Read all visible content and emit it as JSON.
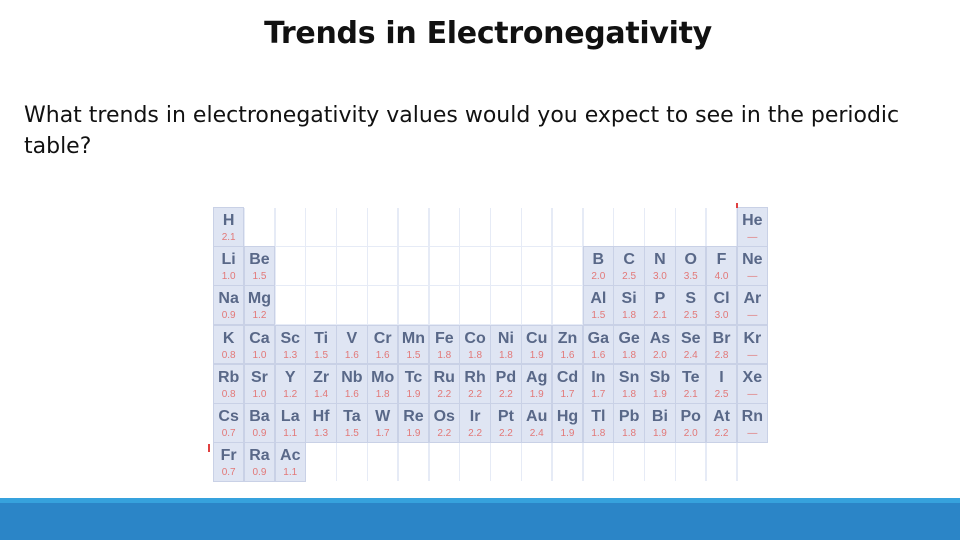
{
  "slide": {
    "title": "Trends in Electronegativity",
    "body": "What trends in electronegativity values would you expect to see in the periodic table?"
  },
  "periodic_table": {
    "colors": {
      "cell_background": "#dfe5f3",
      "symbol_color": "#596888",
      "value_color": "#e27878"
    },
    "rows": [
      [
        {
          "symbol": "H",
          "value": "2.1"
        },
        null,
        null,
        null,
        null,
        null,
        null,
        null,
        null,
        null,
        null,
        null,
        null,
        {
          "symbol": "He",
          "value": "—"
        }
      ],
      [
        {
          "symbol": "Li",
          "value": "1.0"
        },
        {
          "symbol": "Be",
          "value": "1.5"
        },
        null,
        null,
        null,
        null,
        null,
        null,
        {
          "symbol": "B",
          "value": "2.0"
        },
        {
          "symbol": "C",
          "value": "2.5"
        },
        {
          "symbol": "N",
          "value": "3.0"
        },
        {
          "symbol": "O",
          "value": "3.5"
        },
        {
          "symbol": "F",
          "value": "4.0"
        },
        {
          "symbol": "Ne",
          "value": "—"
        }
      ],
      [
        {
          "symbol": "Na",
          "value": "0.9"
        },
        {
          "symbol": "Mg",
          "value": "1.2"
        },
        null,
        null,
        null,
        null,
        null,
        null,
        {
          "symbol": "Al",
          "value": "1.5"
        },
        {
          "symbol": "Si",
          "value": "1.8"
        },
        {
          "symbol": "P",
          "value": "2.1"
        },
        {
          "symbol": "S",
          "value": "2.5"
        },
        {
          "symbol": "Cl",
          "value": "3.0"
        },
        {
          "symbol": "Ar",
          "value": "—"
        }
      ],
      [
        {
          "symbol": "K",
          "value": "0.8"
        },
        {
          "symbol": "Ca",
          "value": "1.0"
        },
        {
          "symbol": "Sc",
          "value": "1.3"
        },
        {
          "symbol": "Ti",
          "value": "1.5"
        },
        {
          "symbol": "V",
          "value": "1.6"
        },
        {
          "symbol": "Cr",
          "value": "1.6"
        },
        {
          "symbol": "Mn",
          "value": "1.5"
        },
        {
          "symbol": "Fe",
          "value": "1.8"
        },
        {
          "symbol": "Co",
          "value": "1.8"
        },
        {
          "symbol": "Ni",
          "value": "1.8"
        },
        {
          "symbol": "Cu",
          "value": "1.9"
        },
        {
          "symbol": "Zn",
          "value": "1.6"
        },
        {
          "symbol": "Ga",
          "value": "1.6"
        },
        {
          "symbol": "Ge",
          "value": "1.8"
        },
        {
          "symbol": "As",
          "value": "2.0"
        },
        {
          "symbol": "Se",
          "value": "2.4"
        },
        {
          "symbol": "Br",
          "value": "2.8"
        },
        {
          "symbol": "Kr",
          "value": "—"
        }
      ],
      [
        {
          "symbol": "Rb",
          "value": "0.8"
        },
        {
          "symbol": "Sr",
          "value": "1.0"
        },
        {
          "symbol": "Y",
          "value": "1.2"
        },
        {
          "symbol": "Zr",
          "value": "1.4"
        },
        {
          "symbol": "Nb",
          "value": "1.6"
        },
        {
          "symbol": "Mo",
          "value": "1.8"
        },
        {
          "symbol": "Tc",
          "value": "1.9"
        },
        {
          "symbol": "Ru",
          "value": "2.2"
        },
        {
          "symbol": "Rh",
          "value": "2.2"
        },
        {
          "symbol": "Pd",
          "value": "2.2"
        },
        {
          "symbol": "Ag",
          "value": "1.9"
        },
        {
          "symbol": "Cd",
          "value": "1.7"
        },
        {
          "symbol": "In",
          "value": "1.7"
        },
        {
          "symbol": "Sn",
          "value": "1.8"
        },
        {
          "symbol": "Sb",
          "value": "1.9"
        },
        {
          "symbol": "Te",
          "value": "2.1"
        },
        {
          "symbol": "I",
          "value": "2.5"
        },
        {
          "symbol": "Xe",
          "value": "—"
        }
      ],
      [
        {
          "symbol": "Cs",
          "value": "0.7"
        },
        {
          "symbol": "Ba",
          "value": "0.9"
        },
        {
          "symbol": "La",
          "value": "1.1"
        },
        {
          "symbol": "Hf",
          "value": "1.3"
        },
        {
          "symbol": "Ta",
          "value": "1.5"
        },
        {
          "symbol": "W",
          "value": "1.7"
        },
        {
          "symbol": "Re",
          "value": "1.9"
        },
        {
          "symbol": "Os",
          "value": "2.2"
        },
        {
          "symbol": "Ir",
          "value": "2.2"
        },
        {
          "symbol": "Pt",
          "value": "2.2"
        },
        {
          "symbol": "Au",
          "value": "2.4"
        },
        {
          "symbol": "Hg",
          "value": "1.9"
        },
        {
          "symbol": "Tl",
          "value": "1.8"
        },
        {
          "symbol": "Pb",
          "value": "1.8"
        },
        {
          "symbol": "Bi",
          "value": "1.9"
        },
        {
          "symbol": "Po",
          "value": "2.0"
        },
        {
          "symbol": "At",
          "value": "2.2"
        },
        {
          "symbol": "Rn",
          "value": "—"
        }
      ],
      [
        {
          "symbol": "Fr",
          "value": "0.7"
        },
        {
          "symbol": "Ra",
          "value": "0.9"
        },
        {
          "symbol": "Ac",
          "value": "1.1"
        }
      ]
    ]
  },
  "footer": {
    "bar_color": "#2b85c7",
    "stripe_color": "#36a2dd"
  }
}
